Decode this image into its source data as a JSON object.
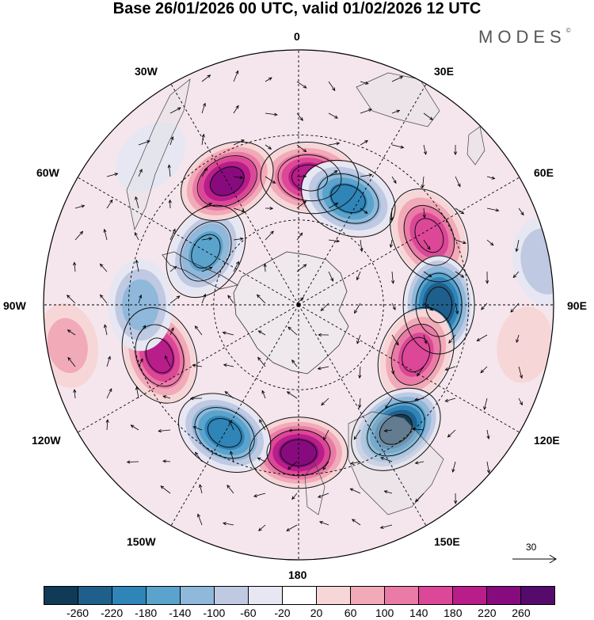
{
  "title": "Base 26/01/2026 00 UTC, valid 01/02/2026 12 UTC",
  "brand": "MODES",
  "brand_mark": "©",
  "longitude_labels": {
    "top": "0",
    "right": "90E",
    "bottom": "180",
    "left": "90W",
    "l30w": "30W",
    "l30e": "30E",
    "l60w": "60W",
    "l60e": "60E",
    "l120w": "120W",
    "l120e": "120E",
    "l150w": "150W",
    "l150e": "150E"
  },
  "reference_vector": {
    "label": "30"
  },
  "colorbar": {
    "colors": [
      "#103a55",
      "#1f5f8c",
      "#2f84b8",
      "#5aa3cc",
      "#8fb8da",
      "#bfc9e2",
      "#e6e7f2",
      "#ffffff",
      "#f7d6d8",
      "#f1aab8",
      "#ea7aa6",
      "#dc4797",
      "#b81d89",
      "#870b7e",
      "#560a6c"
    ],
    "ticks": [
      "-260",
      "-220",
      "-180",
      "-140",
      "-100",
      "-60",
      "-20",
      "20",
      "60",
      "100",
      "140",
      "180",
      "220",
      "260"
    ]
  },
  "anomalies": [
    {
      "lon": 5,
      "colat": 0.5,
      "value": 200
    },
    {
      "lon": 25,
      "colat": 0.46,
      "value": -190
    },
    {
      "lon": 62,
      "colat": 0.58,
      "value": 170
    },
    {
      "lon": 90,
      "colat": 0.55,
      "value": -260
    },
    {
      "lon": 113,
      "colat": 0.5,
      "value": 160
    },
    {
      "lon": 142,
      "colat": 0.62,
      "value": -270
    },
    {
      "lon": 180,
      "colat": 0.58,
      "value": 240
    },
    {
      "lon": 210,
      "colat": 0.58,
      "value": -200
    },
    {
      "lon": 250,
      "colat": 0.58,
      "value": 190
    },
    {
      "lon": 270,
      "colat": 0.62,
      "value": -120
    },
    {
      "lon": 300,
      "colat": 0.42,
      "value": -150
    },
    {
      "lon": 330,
      "colat": 0.56,
      "value": 230
    },
    {
      "lon": 80,
      "colat": 0.98,
      "value": -100
    },
    {
      "lon": 100,
      "colat": 0.9,
      "value": 40
    },
    {
      "lon": 260,
      "colat": 0.92,
      "value": 70
    },
    {
      "lon": 315,
      "colat": 0.82,
      "value": -50
    }
  ]
}
